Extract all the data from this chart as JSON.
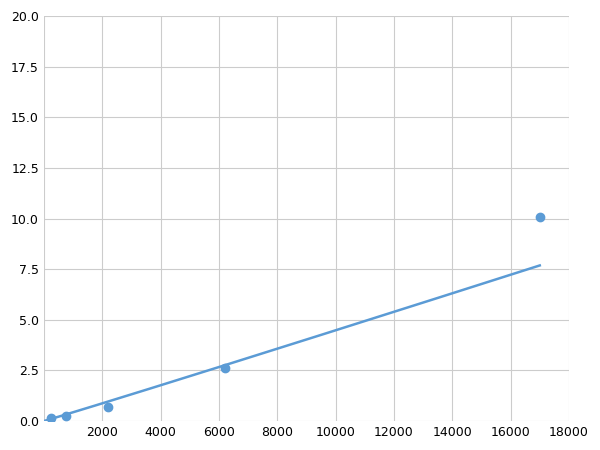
{
  "x_points": [
    250,
    750,
    2200,
    6200,
    17000
  ],
  "y_points": [
    0.15,
    0.25,
    0.7,
    2.6,
    10.1
  ],
  "marker_x": [
    250,
    750,
    2200,
    6200,
    17000
  ],
  "marker_y": [
    0.15,
    0.25,
    0.7,
    2.6,
    10.1
  ],
  "line_color": "#5b9bd5",
  "marker_color": "#5b9bd5",
  "marker_size": 6,
  "xlim": [
    0,
    18000
  ],
  "ylim": [
    0,
    20
  ],
  "xticks": [
    0,
    2000,
    4000,
    6000,
    8000,
    10000,
    12000,
    14000,
    16000,
    18000
  ],
  "yticks": [
    0.0,
    2.5,
    5.0,
    7.5,
    10.0,
    12.5,
    15.0,
    17.5,
    20.0
  ],
  "grid_color": "#cccccc",
  "background_color": "#ffffff",
  "linewidth": 1.8
}
